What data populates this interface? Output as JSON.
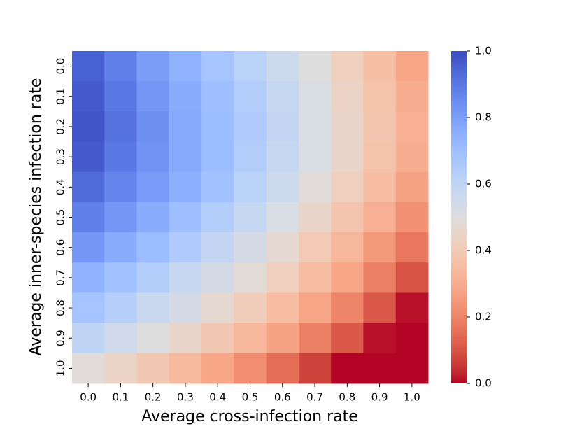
{
  "chart_data": {
    "type": "heatmap",
    "x_label": "Average cross-infection rate",
    "y_label": "Average inner-species infection rate",
    "x_categories": [
      "0.0",
      "0.1",
      "0.2",
      "0.3",
      "0.4",
      "0.5",
      "0.6",
      "0.7",
      "0.8",
      "0.9",
      "1.0"
    ],
    "y_categories": [
      "0.0",
      "0.1",
      "0.2",
      "0.3",
      "0.4",
      "0.5",
      "0.6",
      "0.7",
      "0.8",
      "0.9",
      "1.0"
    ],
    "values": [
      [
        0.95,
        0.88,
        0.8,
        0.74,
        0.68,
        0.62,
        0.56,
        0.5,
        0.42,
        0.36,
        0.28
      ],
      [
        0.97,
        0.9,
        0.82,
        0.76,
        0.7,
        0.64,
        0.58,
        0.52,
        0.44,
        0.37,
        0.3
      ],
      [
        0.98,
        0.91,
        0.84,
        0.77,
        0.71,
        0.65,
        0.59,
        0.52,
        0.45,
        0.38,
        0.31
      ],
      [
        0.97,
        0.9,
        0.83,
        0.77,
        0.71,
        0.64,
        0.58,
        0.52,
        0.45,
        0.37,
        0.3
      ],
      [
        0.93,
        0.87,
        0.81,
        0.75,
        0.69,
        0.62,
        0.56,
        0.49,
        0.42,
        0.35,
        0.27
      ],
      [
        0.88,
        0.82,
        0.76,
        0.7,
        0.64,
        0.58,
        0.52,
        0.45,
        0.38,
        0.31,
        0.23
      ],
      [
        0.82,
        0.76,
        0.71,
        0.65,
        0.59,
        0.53,
        0.47,
        0.4,
        0.33,
        0.25,
        0.17
      ],
      [
        0.74,
        0.69,
        0.64,
        0.58,
        0.53,
        0.48,
        0.42,
        0.35,
        0.28,
        0.19,
        0.1
      ],
      [
        0.68,
        0.63,
        0.57,
        0.53,
        0.47,
        0.41,
        0.35,
        0.28,
        0.2,
        0.11,
        0.01
      ],
      [
        0.6,
        0.55,
        0.5,
        0.45,
        0.39,
        0.33,
        0.27,
        0.19,
        0.11,
        0.01,
        0.0
      ],
      [
        0.49,
        0.44,
        0.39,
        0.34,
        0.28,
        0.22,
        0.15,
        0.07,
        0.0,
        0.0,
        0.0
      ]
    ],
    "colormap": "coolwarm_r",
    "clim": [
      0,
      1
    ],
    "cticks": [
      {
        "value": 0,
        "label": "0.0"
      },
      0.2,
      0.4,
      0.6,
      0.8,
      {
        "value": 1,
        "label": "1.0"
      }
    ]
  }
}
